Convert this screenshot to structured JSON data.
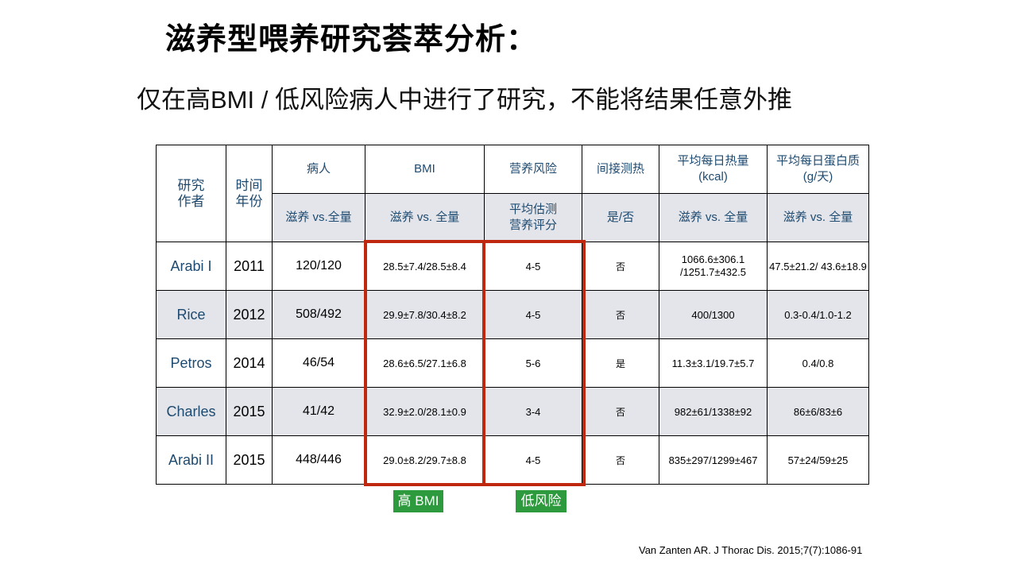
{
  "title": "滋养型喂养研究荟萃分析：",
  "subtitle": "仅在高BMI / 低风险病人中进行了研究，不能将结果任意外推",
  "table": {
    "header": {
      "author": "研究\n作者",
      "year": "时间\n年份",
      "patients": "病人",
      "bmi": "BMI",
      "risk": "营养风险",
      "calorimetry": "间接测热",
      "calories": "平均每日热量\n(kcal)",
      "protein": "平均每日蛋白质\n(g/天)"
    },
    "subheader": {
      "patients": "滋养 vs.全量",
      "bmi": "滋养 vs. 全量",
      "risk": "平均估测\n营养评分",
      "calorimetry": "是/否",
      "calories": "滋养 vs. 全量",
      "protein": "滋养 vs. 全量"
    },
    "rows": [
      {
        "author": "Arabi I",
        "year": "2011",
        "patients": "120/120",
        "bmi": "28.5±7.4/28.5±8.4",
        "risk": "4-5",
        "calorimetry": "否",
        "calories": "1066.6±306.1\n/1251.7±432.5",
        "protein": "47.5±21.2/ 43.6±18.9"
      },
      {
        "author": "Rice",
        "year": "2012",
        "patients": "508/492",
        "bmi": "29.9±7.8/30.4±8.2",
        "risk": "4-5",
        "calorimetry": "否",
        "calories": "400/1300",
        "protein": "0.3-0.4/1.0-1.2"
      },
      {
        "author": "Petros",
        "year": "2014",
        "patients": "46/54",
        "bmi": "28.6±6.5/27.1±6.8",
        "risk": "5-6",
        "calorimetry": "是",
        "calories": "11.3±3.1/19.7±5.7",
        "protein": "0.4/0.8"
      },
      {
        "author": "Charles",
        "year": "2015",
        "patients": "41/42",
        "bmi": "32.9±2.0/28.1±0.9",
        "risk": "3-4",
        "calorimetry": "否",
        "calories": "982±61/1338±92",
        "protein": "86±6/83±6"
      },
      {
        "author": "Arabi II",
        "year": "2015",
        "patients": "448/446",
        "bmi": "29.0±8.2/29.7±8.8",
        "risk": "4-5",
        "calorimetry": "否",
        "calories": "835±297/1299±467",
        "protein": "57±24/59±25"
      }
    ]
  },
  "tags": {
    "bmi": "高 BMI",
    "risk": "低风险"
  },
  "colors": {
    "highlight_border": "#c0270f",
    "tag_bg": "#2e9a3e",
    "header_text": "#1e4a70",
    "gray_row": "#e3e5ea"
  },
  "citation": "Van Zanten AR. J Thorac Dis. 2015;7(7):1086-91"
}
